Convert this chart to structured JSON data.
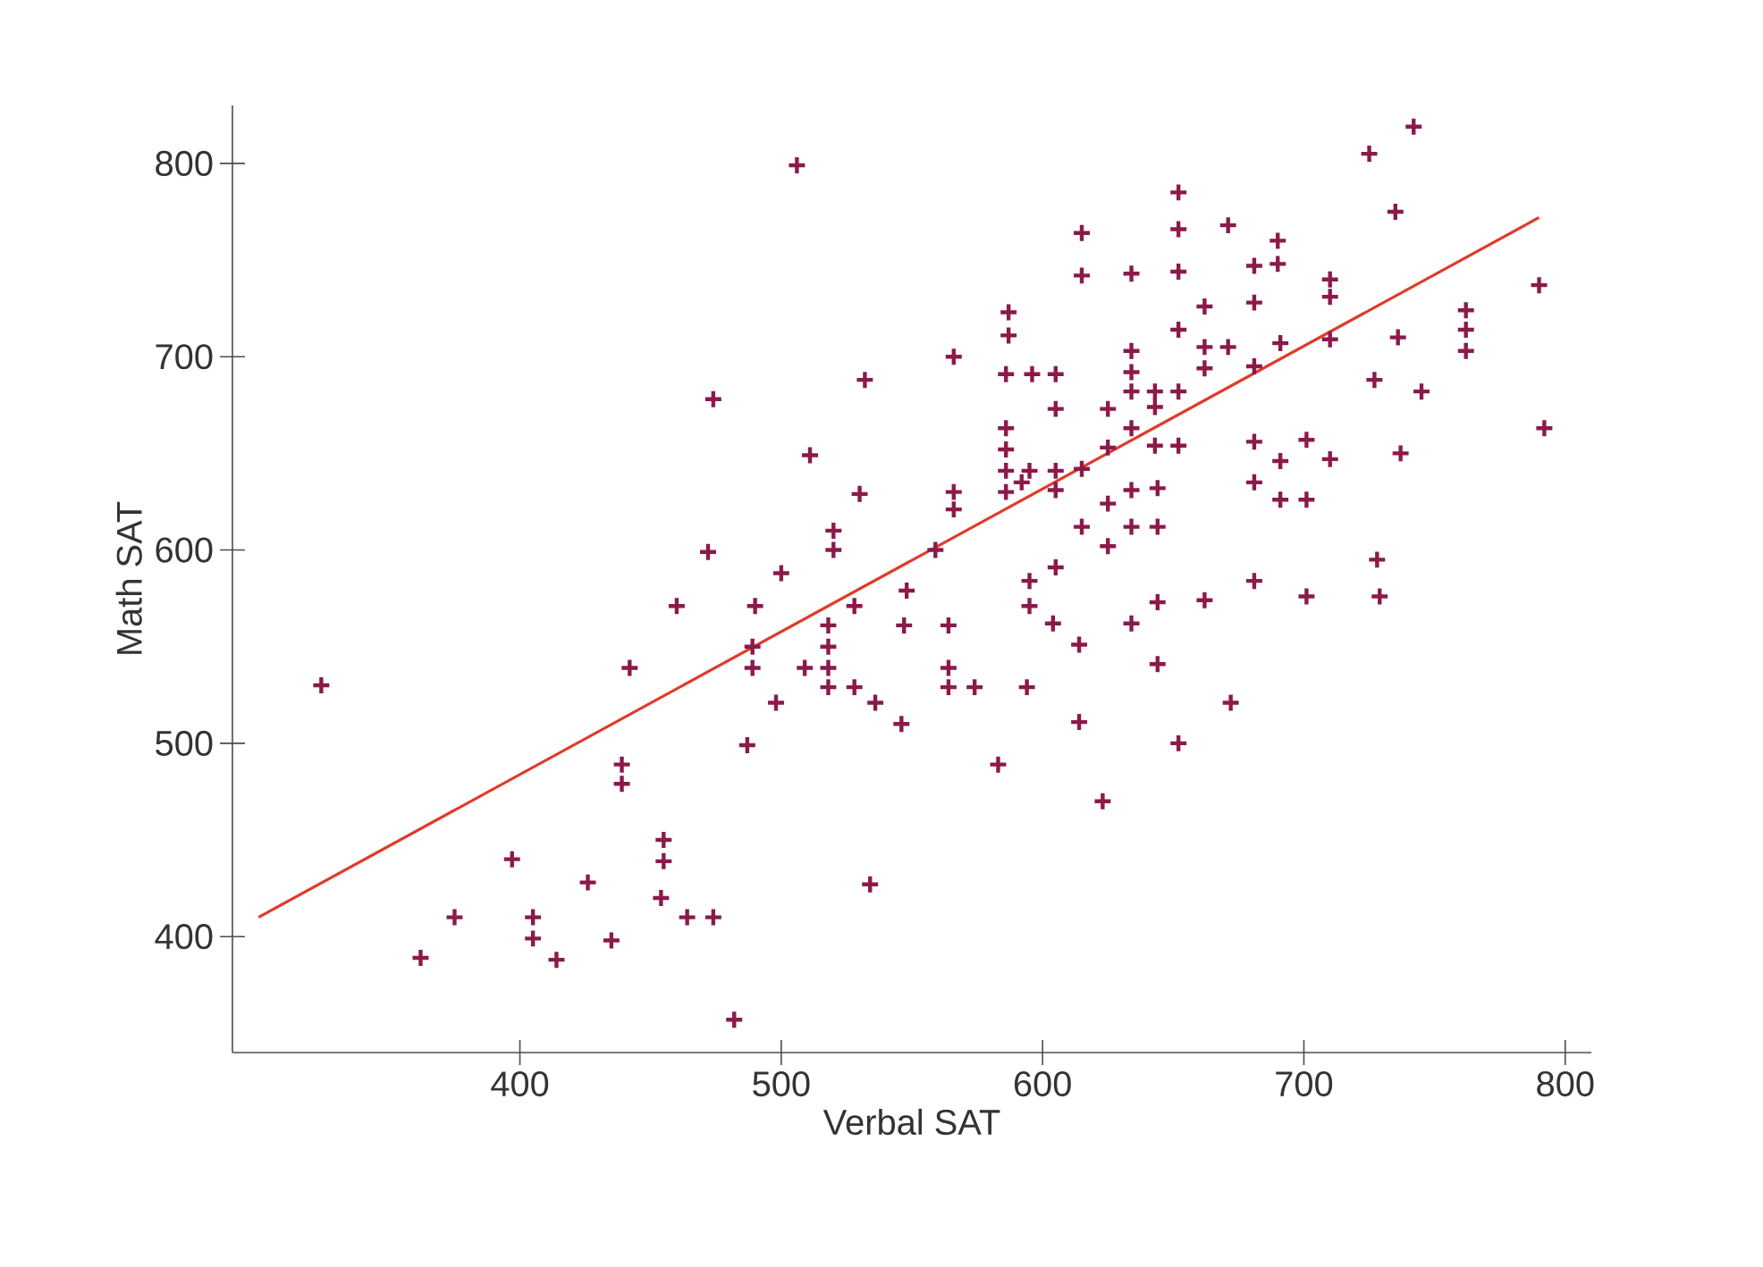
{
  "chart_data": {
    "type": "scatter",
    "xlabel": "Verbal SAT",
    "ylabel": "Math SAT",
    "xlim": [
      290,
      810
    ],
    "ylim": [
      340,
      830
    ],
    "xticks": [
      400,
      500,
      600,
      700,
      800
    ],
    "yticks": [
      400,
      500,
      600,
      700,
      800
    ],
    "grid": false,
    "series": [
      {
        "marker": "cross",
        "color": "#8b1a4a",
        "x": [
          324,
          375,
          362,
          397,
          405,
          405,
          414,
          426,
          435,
          442,
          439,
          439,
          455,
          455,
          454,
          464,
          474,
          482,
          460,
          490,
          489,
          489,
          498,
          487,
          500,
          509,
          518,
          518,
          518,
          518,
          528,
          528,
          536,
          546,
          534,
          548,
          547,
          564,
          564,
          564,
          506,
          566,
          532,
          474,
          511,
          530,
          566,
          566,
          520,
          520,
          472,
          559,
          742,
          725,
          735,
          652,
          652,
          671,
          615,
          615,
          634,
          652,
          690,
          690,
          681,
          681,
          662,
          710,
          710,
          587,
          587,
          652,
          634,
          634,
          634,
          662,
          662,
          671,
          691,
          710,
          681,
          586,
          596,
          605,
          605,
          625,
          643,
          643,
          652,
          586,
          586,
          586,
          586,
          592,
          595,
          605,
          605,
          615,
          625,
          634,
          643,
          652,
          625,
          634,
          644,
          615,
          634,
          644,
          625,
          605,
          595,
          681,
          681,
          691,
          691,
          701,
          701,
          710,
          727,
          745,
          736,
          762,
          762,
          762,
          790,
          792,
          737,
          728,
          681,
          595,
          604,
          614,
          634,
          644,
          662,
          701,
          729,
          644,
          672,
          652,
          614,
          583,
          623,
          574,
          594
        ],
        "values": [
          530,
          410,
          389,
          440,
          410,
          399,
          388,
          428,
          398,
          539,
          489,
          479,
          450,
          439,
          420,
          410,
          410,
          357,
          571,
          571,
          550,
          539,
          521,
          499,
          588,
          539,
          561,
          550,
          539,
          529,
          529,
          571,
          521,
          510,
          427,
          579,
          561,
          561,
          539,
          529,
          799,
          700,
          688,
          678,
          649,
          629,
          630,
          621,
          610,
          600,
          599,
          600,
          819,
          805,
          775,
          785,
          766,
          768,
          764,
          742,
          743,
          744,
          760,
          748,
          747,
          728,
          726,
          740,
          731,
          723,
          711,
          714,
          703,
          692,
          682,
          705,
          694,
          705,
          707,
          709,
          695,
          691,
          691,
          691,
          673,
          673,
          682,
          674,
          682,
          663,
          652,
          641,
          630,
          635,
          641,
          641,
          631,
          642,
          653,
          663,
          654,
          654,
          624,
          631,
          632,
          612,
          612,
          612,
          602,
          591,
          584,
          656,
          635,
          646,
          626,
          657,
          626,
          647,
          688,
          682,
          710,
          724,
          714,
          703,
          737,
          663,
          650,
          595,
          584,
          571,
          562,
          551,
          562,
          573,
          574,
          576,
          576,
          541,
          521,
          500,
          511,
          489,
          470,
          529,
          529
        ]
      },
      {
        "type": "line",
        "marker": "none",
        "color": "#e03a2a",
        "x": [
          300,
          790
        ],
        "values": [
          410,
          772
        ]
      }
    ]
  }
}
